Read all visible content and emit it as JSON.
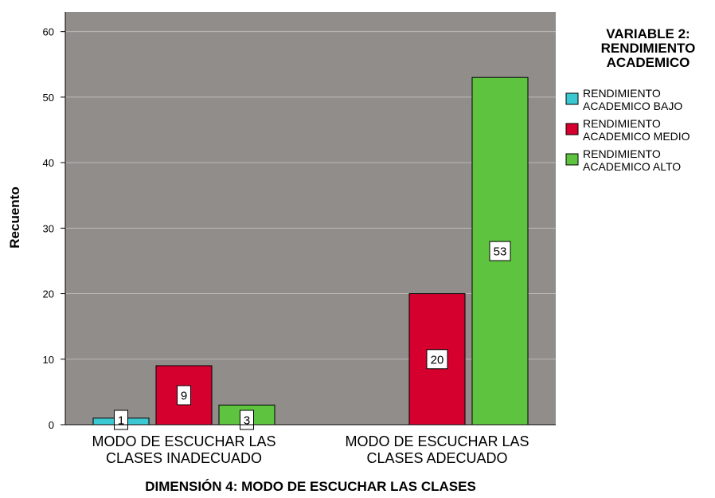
{
  "chart_data": {
    "type": "bar",
    "categories": [
      [
        "MODO DE ESCUCHAR LAS",
        "CLASES INADECUADO"
      ],
      [
        "MODO DE ESCUCHAR LAS",
        "CLASES ADECUADO"
      ]
    ],
    "series": [
      {
        "name": [
          "RENDIMIENTO",
          "ACADEMICO BAJO"
        ],
        "color": "#3cc8d2",
        "values": [
          1,
          null
        ]
      },
      {
        "name": [
          "RENDIMIENTO",
          "ACADEMICO MEDIO"
        ],
        "color": "#d6002f",
        "values": [
          9,
          20
        ]
      },
      {
        "name": [
          "RENDIMIENTO",
          "ACADEMICO ALTO"
        ],
        "color": "#5ec33f",
        "values": [
          3,
          53
        ]
      }
    ],
    "xlabel": "DIMENSIÓN 4: MODO DE ESCUCHAR LAS CLASES",
    "ylabel": "Recuento",
    "ylim": [
      0,
      63
    ],
    "yticks": [
      0,
      10,
      20,
      30,
      40,
      50,
      60
    ],
    "grid": true,
    "legend_title": [
      "VARIABLE 2:",
      "RENDIMIENTO",
      "ACADEMICO"
    ],
    "legend_position": "right",
    "plot_background": "#918d8a",
    "data_labels": true
  }
}
